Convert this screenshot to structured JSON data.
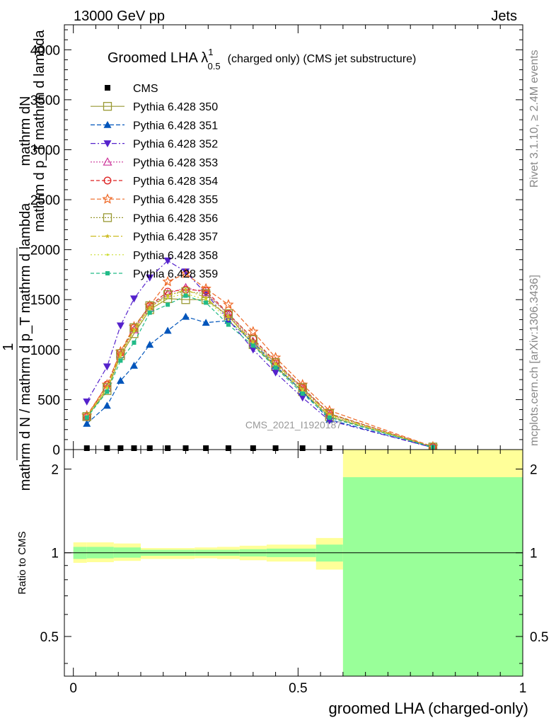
{
  "header": {
    "energy_label": "13000 GeV pp",
    "process_label": "Jets",
    "rivet_label": "Rivet 3.1.10, ≥ 2.4M events",
    "mcplots_label": "mcplots.cern.ch [arXiv:1306.3436]",
    "watermark": "CMS_2021_I1920187"
  },
  "titles": {
    "plot_title_main": "Groomed LHA λ",
    "plot_title_sup": "1",
    "plot_title_sub": "0.5",
    "plot_title_rest": "(charged only) (CMS jet substructure)",
    "y_main_num": "mathrm dN",
    "y_main_num_den": "mathrm d p_T mathrm d lambda",
    "y_main_den": "mathrm d N / mathrm d p_T mathrm d lambda",
    "y_main_frac_prefix": "1",
    "y_ratio": "Ratio to CMS",
    "x_axis": "groomed LHA (charged-only)"
  },
  "colors": {
    "band_yellow": "#ffff99",
    "band_green": "#99ff99"
  },
  "chart_data": [
    {
      "type": "line",
      "panel": "main",
      "title": "Groomed LHA λ^1_0.5 (charged only) (CMS jet substructure)",
      "xlabel": "groomed LHA (charged-only)",
      "ylabel": "1 / (mathrm d N / mathrm d p_T mathrm d lambda) · mathrm dN / (mathrm d p_T mathrm d lambda)",
      "xlim": [
        -0.02,
        1.0
      ],
      "ylim": [
        0,
        4250
      ],
      "y_ticks": [
        0,
        500,
        1000,
        1500,
        2000,
        2500,
        3000,
        3500,
        4000
      ],
      "y_tick_labels": [
        "0",
        "500",
        "1000",
        "1500",
        "2000",
        "2500",
        "3000",
        "3500",
        "4000"
      ],
      "x": [
        0.03,
        0.075,
        0.105,
        0.135,
        0.17,
        0.21,
        0.25,
        0.295,
        0.345,
        0.4,
        0.45,
        0.51,
        0.57,
        0.8
      ],
      "legend_position": "top-left",
      "series": [
        {
          "name": "CMS",
          "color": "#000000",
          "marker": "square-filled",
          "dash": "none",
          "values": [
            10,
            10,
            10,
            10,
            10,
            10,
            10,
            10,
            10,
            10,
            10,
            10,
            10,
            null
          ]
        },
        {
          "name": "Pythia 6.428 350",
          "color": "#999933",
          "marker": "square-open",
          "dash": "solid",
          "values": [
            330,
            590,
            940,
            1160,
            1400,
            1510,
            1500,
            1500,
            1340,
            1050,
            830,
            580,
            330,
            25
          ]
        },
        {
          "name": "Pythia 6.428 351",
          "color": "#0055bb",
          "marker": "triangle-up-filled",
          "dash": "6,3",
          "values": [
            260,
            440,
            690,
            840,
            1050,
            1190,
            1330,
            1270,
            1290,
            1070,
            840,
            580,
            300,
            20
          ]
        },
        {
          "name": "Pythia 6.428 352",
          "color": "#5522cc",
          "marker": "triangle-down-filled",
          "dash": "7,3,2,3",
          "values": [
            480,
            830,
            1240,
            1510,
            1720,
            1890,
            1780,
            1560,
            1300,
            1000,
            770,
            520,
            290,
            20
          ]
        },
        {
          "name": "Pythia 6.428 353",
          "color": "#cc3399",
          "marker": "triangle-up-open",
          "dash": "2,2",
          "values": [
            330,
            620,
            950,
            1200,
            1420,
            1560,
            1620,
            1570,
            1350,
            1080,
            860,
            610,
            350,
            25
          ]
        },
        {
          "name": "Pythia 6.428 354",
          "color": "#dd2222",
          "marker": "circle-open",
          "dash": "5,3",
          "values": [
            330,
            650,
            970,
            1220,
            1440,
            1580,
            1600,
            1590,
            1360,
            1110,
            880,
            620,
            360,
            28
          ]
        },
        {
          "name": "Pythia 6.428 355",
          "color": "#ee6622",
          "marker": "star-open",
          "dash": "6,3",
          "values": [
            340,
            650,
            980,
            1230,
            1440,
            1680,
            1760,
            1610,
            1450,
            1180,
            920,
            650,
            390,
            30
          ]
        },
        {
          "name": "Pythia 6.428 356",
          "color": "#999933",
          "marker": "square-open",
          "dash": "2,2",
          "values": [
            330,
            620,
            960,
            1220,
            1440,
            1550,
            1580,
            1560,
            1360,
            1100,
            870,
            620,
            360,
            25
          ]
        },
        {
          "name": "Pythia 6.428 357",
          "color": "#ccbb22",
          "marker": "star-small",
          "dash": "8,3,2,3",
          "values": [
            330,
            620,
            960,
            1200,
            1420,
            1540,
            1600,
            1520,
            1330,
            1080,
            860,
            600,
            350,
            25
          ]
        },
        {
          "name": "Pythia 6.428 358",
          "color": "#ccdd33",
          "marker": "dot",
          "dash": "2,3",
          "values": [
            330,
            610,
            940,
            1180,
            1400,
            1520,
            1560,
            1500,
            1300,
            1060,
            840,
            590,
            340,
            25
          ]
        },
        {
          "name": "Pythia 6.428 359",
          "color": "#22bb88",
          "marker": "square-small-filled",
          "dash": "5,3",
          "values": [
            320,
            580,
            890,
            1070,
            1370,
            1450,
            1540,
            1470,
            1250,
            1040,
            820,
            560,
            320,
            25
          ]
        }
      ]
    },
    {
      "type": "area",
      "panel": "ratio",
      "ylabel": "Ratio to CMS",
      "xlabel": "groomed LHA (charged-only)",
      "xlim": [
        -0.02,
        1.0
      ],
      "ylim": [
        0.36,
        2.35
      ],
      "scale": "log",
      "y_ticks": [
        0.5,
        1,
        2
      ],
      "y_tick_labels": [
        "0.5",
        "1",
        "2"
      ],
      "x_ticks": [
        0,
        0.5,
        1
      ],
      "x_tick_labels": [
        "0",
        "0.5",
        "1"
      ],
      "reference_line": 1,
      "bins": [
        {
          "xlo": 0.0,
          "xhi": 0.03,
          "yellow": [
            0.92,
            1.09
          ],
          "green": [
            0.95,
            1.05
          ]
        },
        {
          "xlo": 0.03,
          "xhi": 0.09,
          "yellow": [
            0.925,
            1.09
          ],
          "green": [
            0.955,
            1.05
          ]
        },
        {
          "xlo": 0.09,
          "xhi": 0.15,
          "yellow": [
            0.935,
            1.08
          ],
          "green": [
            0.96,
            1.045
          ]
        },
        {
          "xlo": 0.15,
          "xhi": 0.27,
          "yellow": [
            0.95,
            1.04
          ],
          "green": [
            0.975,
            1.025
          ]
        },
        {
          "xlo": 0.27,
          "xhi": 0.32,
          "yellow": [
            0.955,
            1.045
          ],
          "green": [
            0.975,
            1.025
          ]
        },
        {
          "xlo": 0.32,
          "xhi": 0.37,
          "yellow": [
            0.95,
            1.05
          ],
          "green": [
            0.975,
            1.025
          ]
        },
        {
          "xlo": 0.37,
          "xhi": 0.43,
          "yellow": [
            0.94,
            1.06
          ],
          "green": [
            0.97,
            1.03
          ]
        },
        {
          "xlo": 0.43,
          "xhi": 0.54,
          "yellow": [
            0.93,
            1.07
          ],
          "green": [
            0.965,
            1.035
          ]
        },
        {
          "xlo": 0.54,
          "xhi": 0.6,
          "yellow": [
            0.87,
            1.13
          ],
          "green": [
            0.93,
            1.07
          ]
        },
        {
          "xlo": 0.6,
          "xhi": 1.0,
          "yellow": [
            0.36,
            2.35
          ],
          "green": [
            0.36,
            1.87
          ]
        }
      ]
    }
  ]
}
